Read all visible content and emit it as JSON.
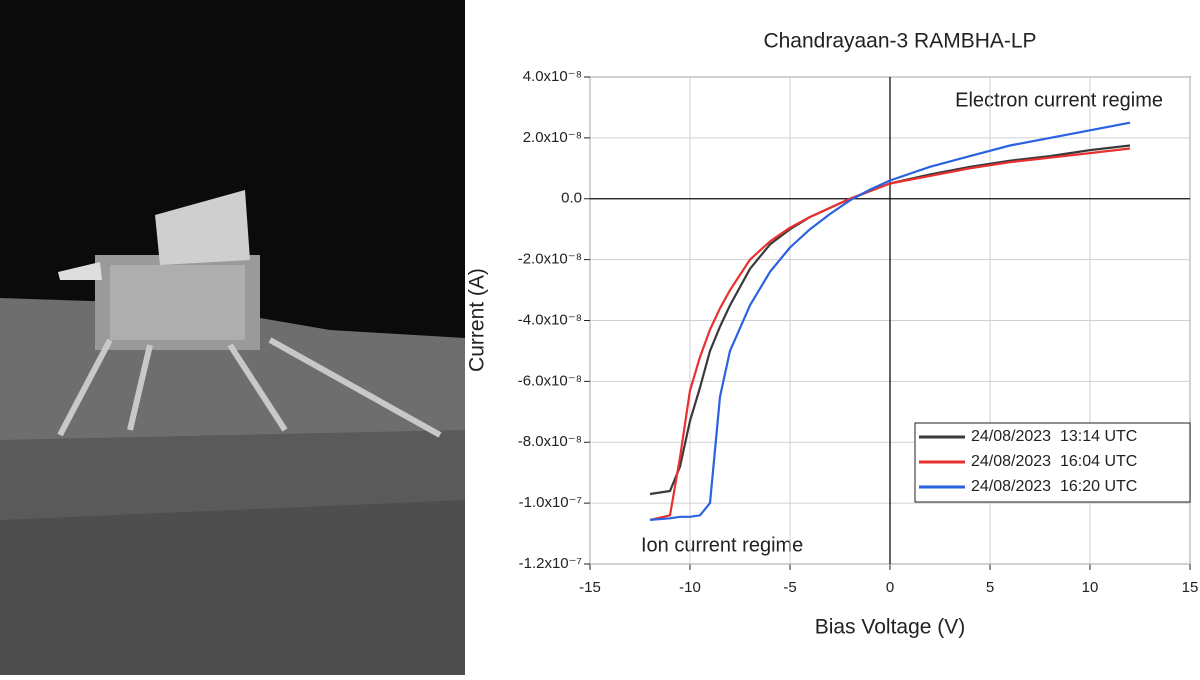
{
  "chart_data": {
    "type": "line",
    "title": "Chandrayaan-3  RAMBHA-LP",
    "x_label": "Bias Voltage (V)",
    "y_label": "Current (A)",
    "annotations": [
      "Electron current regime",
      "Ion current regime"
    ],
    "x": [
      -12,
      -11,
      -10.5,
      -10,
      -9.5,
      -9,
      -8.5,
      -8,
      -7,
      -6,
      -5,
      -4,
      -3,
      -2,
      -1,
      0,
      2,
      4,
      6,
      8,
      10,
      12
    ],
    "series": [
      {
        "name": "24/08/2023  13:14 UTC",
        "color": "#3a3a3a",
        "values": [
          -9.7e-08,
          -9.6e-08,
          -8.8e-08,
          -7.3e-08,
          -6.2e-08,
          -5e-08,
          -4.2e-08,
          -3.5e-08,
          -2.3e-08,
          -1.5e-08,
          -1e-08,
          -6e-09,
          -3e-09,
          0,
          2.5e-09,
          5e-09,
          8e-09,
          1.05e-08,
          1.25e-08,
          1.4e-08,
          1.6e-08,
          1.75e-08
        ]
      },
      {
        "name": "24/08/2023  16:04 UTC",
        "color": "#e8312f",
        "values": [
          -1.055e-07,
          -1.04e-07,
          -8.5e-08,
          -6.3e-08,
          -5.2e-08,
          -4.3e-08,
          -3.6e-08,
          -3e-08,
          -2e-08,
          -1.4e-08,
          -9.5e-09,
          -6e-09,
          -3e-09,
          0,
          2.5e-09,
          5e-09,
          7.5e-09,
          1e-08,
          1.2e-08,
          1.35e-08,
          1.5e-08,
          1.65e-08
        ]
      },
      {
        "name": "24/08/2023  16:20 UTC",
        "color": "#2a62e0",
        "values": [
          -1.055e-07,
          -1.05e-07,
          -1.045e-07,
          -1.045e-07,
          -1.04e-07,
          -1e-07,
          -6.5e-08,
          -5e-08,
          -3.5e-08,
          -2.4e-08,
          -1.6e-08,
          -1e-08,
          -5e-09,
          -5e-10,
          3e-09,
          6e-09,
          1.05e-08,
          1.4e-08,
          1.75e-08,
          2e-08,
          2.25e-08,
          2.5e-08
        ]
      }
    ],
    "xlim": [
      -15,
      15
    ],
    "xticks": [
      -15,
      -10,
      -5,
      0,
      5,
      10,
      15
    ],
    "ylim": [
      -1.2e-07,
      4e-08
    ],
    "yticks": [
      {
        "value": -1.2e-07,
        "label": "-1.2x10⁻⁷"
      },
      {
        "value": -1e-07,
        "label": "-1.0x10⁻⁷"
      },
      {
        "value": -8e-08,
        "label": "-8.0x10⁻⁸"
      },
      {
        "value": -6e-08,
        "label": "-6.0x10⁻⁸"
      },
      {
        "value": -4e-08,
        "label": "-4.0x10⁻⁸"
      },
      {
        "value": -2e-08,
        "label": "-2.0x10⁻⁸"
      },
      {
        "value": 0,
        "label": "0.0"
      },
      {
        "value": 2e-08,
        "label": "2.0x10⁻⁸"
      },
      {
        "value": 4e-08,
        "label": "4.0x10⁻⁸"
      }
    ],
    "grid": true
  }
}
